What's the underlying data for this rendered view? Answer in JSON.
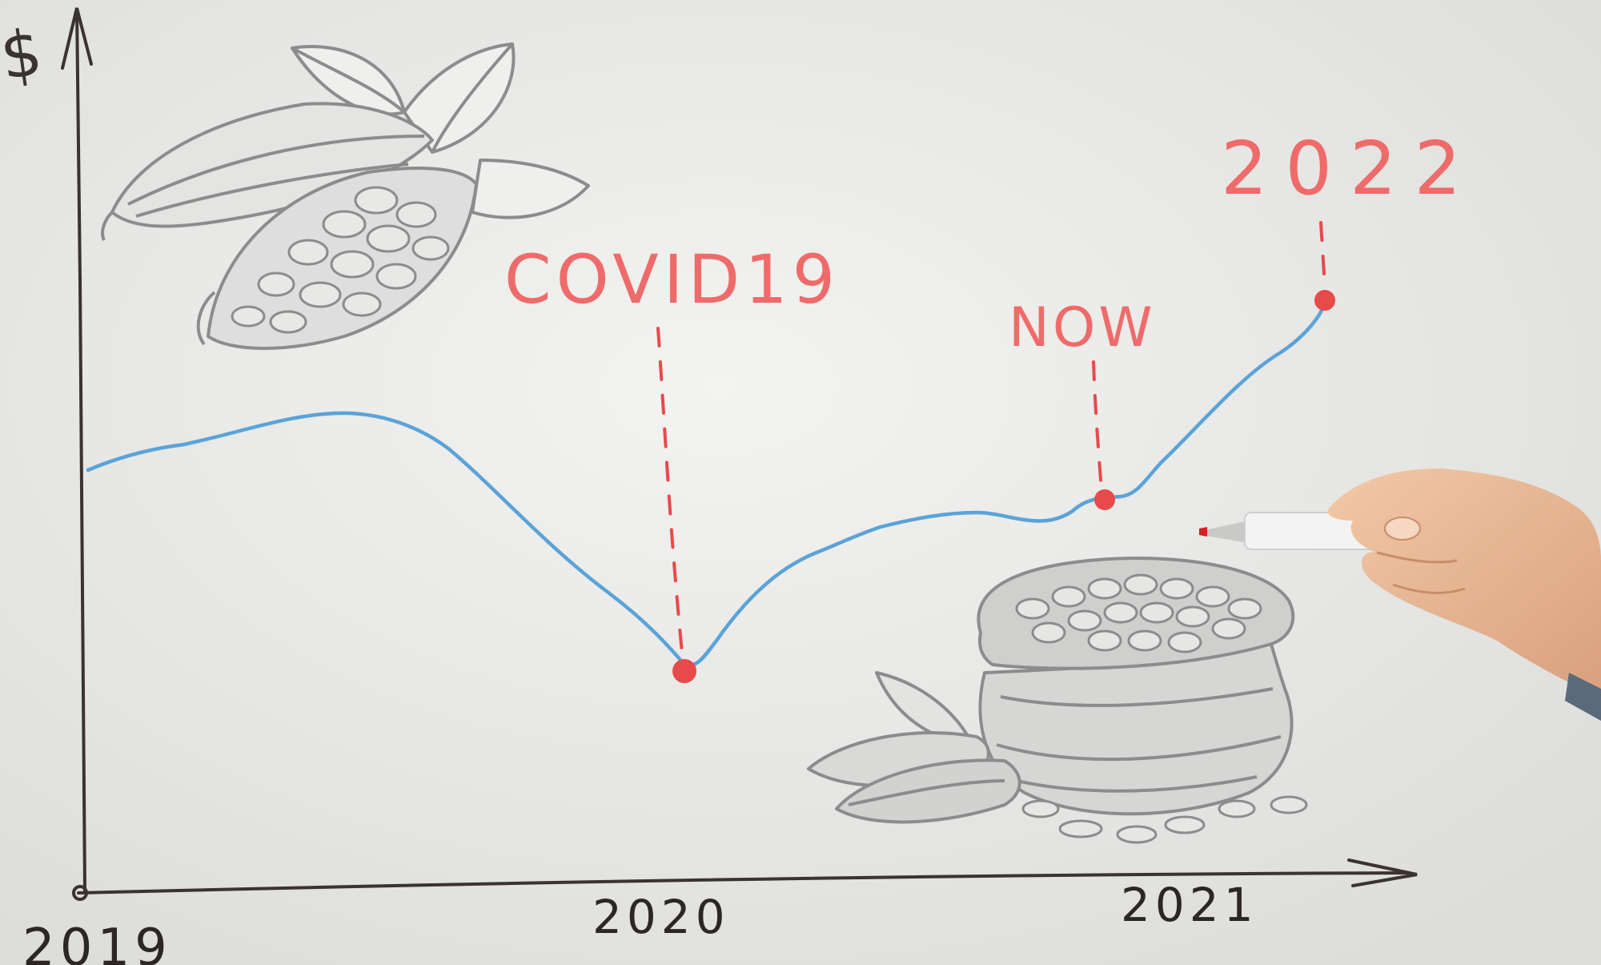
{
  "labels": {
    "y_axis_symbol": "$",
    "x_2019": "2019",
    "x_2020": "2020",
    "x_2021": "2021",
    "covid": "COVID19",
    "now": "NOW",
    "year_2022": "2022"
  },
  "colors": {
    "board": "#ececea",
    "ink_dark": "#3a3330",
    "ink_blue": "#5aa3d8",
    "ink_red": "#e8494b",
    "sketch_gray": "#8c8c8c",
    "marker_red": "#d81e22",
    "skin": "#e8b896"
  },
  "icons": {
    "cocoa_pods": "cocoa-pod-sketch",
    "bean_sack": "cocoa-bean-sack-sketch",
    "hand": "hand-holding-marker",
    "marker": "red-marker-pen"
  }
}
